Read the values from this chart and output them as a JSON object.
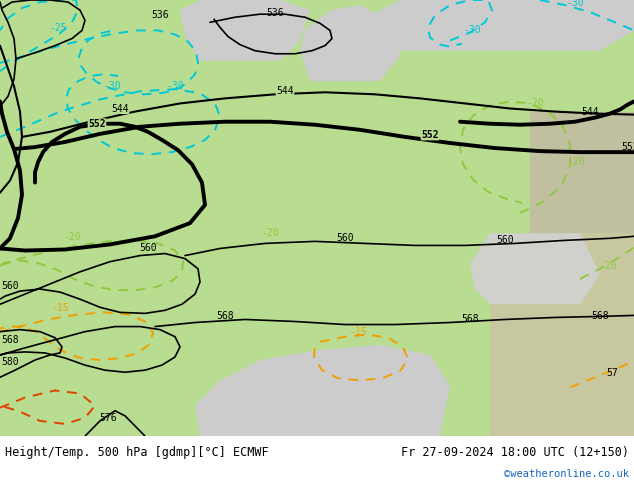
{
  "title_left": "Height/Temp. 500 hPa [gdmp][°C] ECMWF",
  "title_right": "Fr 27-09-2024 18:00 UTC (12+150)",
  "watermark": "©weatheronline.co.uk",
  "bg_green": "#b8dc90",
  "bg_sea": "#dcdcdc",
  "bg_land_gray": "#c8c8c8",
  "black": "#000000",
  "cyan": "#00c8d8",
  "yellow_green": "#90c840",
  "orange": "#f0a000",
  "red_orange": "#e05000",
  "title_fontsize": 8.5,
  "watermark_fontsize": 7.5,
  "label_fontsize": 7
}
